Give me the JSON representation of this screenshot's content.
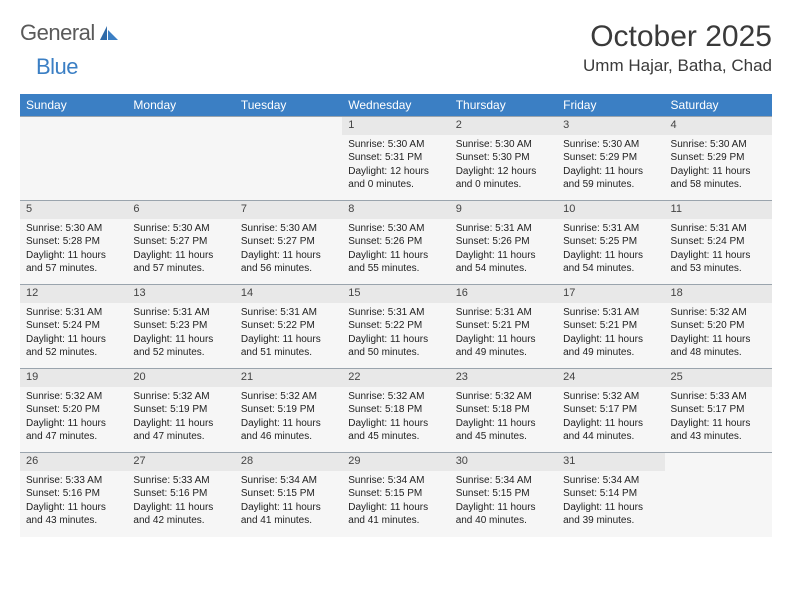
{
  "colors": {
    "header_bg": "#3b7fc4",
    "header_text": "#ffffff",
    "daynum_bg": "#e8e8e8",
    "cell_bg": "#f6f6f6",
    "border": "#9aa4ad",
    "text": "#333333",
    "logo_gray": "#5a5a5a",
    "logo_blue": "#3b7fc4"
  },
  "logo": {
    "part1": "General",
    "part2": "Blue"
  },
  "title": "October 2025",
  "location": "Umm Hajar, Batha, Chad",
  "weekdays": [
    "Sunday",
    "Monday",
    "Tuesday",
    "Wednesday",
    "Thursday",
    "Friday",
    "Saturday"
  ],
  "weeks": [
    [
      null,
      null,
      null,
      {
        "n": "1",
        "sr": "Sunrise: 5:30 AM",
        "ss": "Sunset: 5:31 PM",
        "dl1": "Daylight: 12 hours",
        "dl2": "and 0 minutes."
      },
      {
        "n": "2",
        "sr": "Sunrise: 5:30 AM",
        "ss": "Sunset: 5:30 PM",
        "dl1": "Daylight: 12 hours",
        "dl2": "and 0 minutes."
      },
      {
        "n": "3",
        "sr": "Sunrise: 5:30 AM",
        "ss": "Sunset: 5:29 PM",
        "dl1": "Daylight: 11 hours",
        "dl2": "and 59 minutes."
      },
      {
        "n": "4",
        "sr": "Sunrise: 5:30 AM",
        "ss": "Sunset: 5:29 PM",
        "dl1": "Daylight: 11 hours",
        "dl2": "and 58 minutes."
      }
    ],
    [
      {
        "n": "5",
        "sr": "Sunrise: 5:30 AM",
        "ss": "Sunset: 5:28 PM",
        "dl1": "Daylight: 11 hours",
        "dl2": "and 57 minutes."
      },
      {
        "n": "6",
        "sr": "Sunrise: 5:30 AM",
        "ss": "Sunset: 5:27 PM",
        "dl1": "Daylight: 11 hours",
        "dl2": "and 57 minutes."
      },
      {
        "n": "7",
        "sr": "Sunrise: 5:30 AM",
        "ss": "Sunset: 5:27 PM",
        "dl1": "Daylight: 11 hours",
        "dl2": "and 56 minutes."
      },
      {
        "n": "8",
        "sr": "Sunrise: 5:30 AM",
        "ss": "Sunset: 5:26 PM",
        "dl1": "Daylight: 11 hours",
        "dl2": "and 55 minutes."
      },
      {
        "n": "9",
        "sr": "Sunrise: 5:31 AM",
        "ss": "Sunset: 5:26 PM",
        "dl1": "Daylight: 11 hours",
        "dl2": "and 54 minutes."
      },
      {
        "n": "10",
        "sr": "Sunrise: 5:31 AM",
        "ss": "Sunset: 5:25 PM",
        "dl1": "Daylight: 11 hours",
        "dl2": "and 54 minutes."
      },
      {
        "n": "11",
        "sr": "Sunrise: 5:31 AM",
        "ss": "Sunset: 5:24 PM",
        "dl1": "Daylight: 11 hours",
        "dl2": "and 53 minutes."
      }
    ],
    [
      {
        "n": "12",
        "sr": "Sunrise: 5:31 AM",
        "ss": "Sunset: 5:24 PM",
        "dl1": "Daylight: 11 hours",
        "dl2": "and 52 minutes."
      },
      {
        "n": "13",
        "sr": "Sunrise: 5:31 AM",
        "ss": "Sunset: 5:23 PM",
        "dl1": "Daylight: 11 hours",
        "dl2": "and 52 minutes."
      },
      {
        "n": "14",
        "sr": "Sunrise: 5:31 AM",
        "ss": "Sunset: 5:22 PM",
        "dl1": "Daylight: 11 hours",
        "dl2": "and 51 minutes."
      },
      {
        "n": "15",
        "sr": "Sunrise: 5:31 AM",
        "ss": "Sunset: 5:22 PM",
        "dl1": "Daylight: 11 hours",
        "dl2": "and 50 minutes."
      },
      {
        "n": "16",
        "sr": "Sunrise: 5:31 AM",
        "ss": "Sunset: 5:21 PM",
        "dl1": "Daylight: 11 hours",
        "dl2": "and 49 minutes."
      },
      {
        "n": "17",
        "sr": "Sunrise: 5:31 AM",
        "ss": "Sunset: 5:21 PM",
        "dl1": "Daylight: 11 hours",
        "dl2": "and 49 minutes."
      },
      {
        "n": "18",
        "sr": "Sunrise: 5:32 AM",
        "ss": "Sunset: 5:20 PM",
        "dl1": "Daylight: 11 hours",
        "dl2": "and 48 minutes."
      }
    ],
    [
      {
        "n": "19",
        "sr": "Sunrise: 5:32 AM",
        "ss": "Sunset: 5:20 PM",
        "dl1": "Daylight: 11 hours",
        "dl2": "and 47 minutes."
      },
      {
        "n": "20",
        "sr": "Sunrise: 5:32 AM",
        "ss": "Sunset: 5:19 PM",
        "dl1": "Daylight: 11 hours",
        "dl2": "and 47 minutes."
      },
      {
        "n": "21",
        "sr": "Sunrise: 5:32 AM",
        "ss": "Sunset: 5:19 PM",
        "dl1": "Daylight: 11 hours",
        "dl2": "and 46 minutes."
      },
      {
        "n": "22",
        "sr": "Sunrise: 5:32 AM",
        "ss": "Sunset: 5:18 PM",
        "dl1": "Daylight: 11 hours",
        "dl2": "and 45 minutes."
      },
      {
        "n": "23",
        "sr": "Sunrise: 5:32 AM",
        "ss": "Sunset: 5:18 PM",
        "dl1": "Daylight: 11 hours",
        "dl2": "and 45 minutes."
      },
      {
        "n": "24",
        "sr": "Sunrise: 5:32 AM",
        "ss": "Sunset: 5:17 PM",
        "dl1": "Daylight: 11 hours",
        "dl2": "and 44 minutes."
      },
      {
        "n": "25",
        "sr": "Sunrise: 5:33 AM",
        "ss": "Sunset: 5:17 PM",
        "dl1": "Daylight: 11 hours",
        "dl2": "and 43 minutes."
      }
    ],
    [
      {
        "n": "26",
        "sr": "Sunrise: 5:33 AM",
        "ss": "Sunset: 5:16 PM",
        "dl1": "Daylight: 11 hours",
        "dl2": "and 43 minutes."
      },
      {
        "n": "27",
        "sr": "Sunrise: 5:33 AM",
        "ss": "Sunset: 5:16 PM",
        "dl1": "Daylight: 11 hours",
        "dl2": "and 42 minutes."
      },
      {
        "n": "28",
        "sr": "Sunrise: 5:34 AM",
        "ss": "Sunset: 5:15 PM",
        "dl1": "Daylight: 11 hours",
        "dl2": "and 41 minutes."
      },
      {
        "n": "29",
        "sr": "Sunrise: 5:34 AM",
        "ss": "Sunset: 5:15 PM",
        "dl1": "Daylight: 11 hours",
        "dl2": "and 41 minutes."
      },
      {
        "n": "30",
        "sr": "Sunrise: 5:34 AM",
        "ss": "Sunset: 5:15 PM",
        "dl1": "Daylight: 11 hours",
        "dl2": "and 40 minutes."
      },
      {
        "n": "31",
        "sr": "Sunrise: 5:34 AM",
        "ss": "Sunset: 5:14 PM",
        "dl1": "Daylight: 11 hours",
        "dl2": "and 39 minutes."
      },
      null
    ]
  ]
}
